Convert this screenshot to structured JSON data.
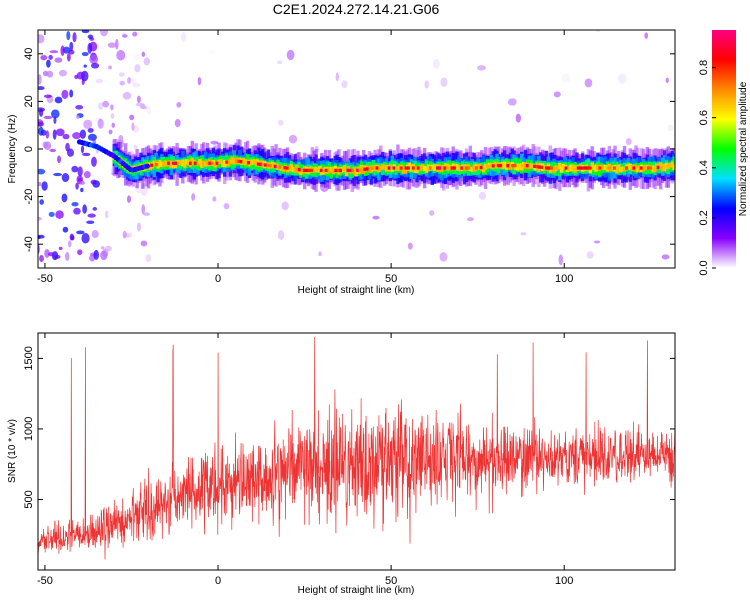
{
  "figure": {
    "title": "C2E1.2024.272.14.21.G06"
  },
  "chart_data": [
    {
      "type": "heatmap",
      "xlabel": "Height of straight line (km)",
      "ylabel": "Frequency (Hz)",
      "xlim": [
        -52,
        132
      ],
      "ylim": [
        -50,
        50
      ],
      "x_ticks": [
        -50,
        0,
        50,
        100
      ],
      "y_ticks": [
        -40,
        -20,
        0,
        20,
        40
      ],
      "ridge": {
        "x": [
          -40,
          -35,
          -30,
          -25,
          -20,
          -15,
          -10,
          -5,
          0,
          5,
          10,
          15,
          20,
          25,
          30,
          35,
          40,
          45,
          50,
          55,
          60,
          65,
          70,
          75,
          80,
          85,
          90,
          95,
          100,
          105,
          110,
          115,
          120,
          125,
          132
        ],
        "frequency_hz": [
          3,
          1,
          -3,
          -9,
          -7,
          -6,
          -6,
          -6,
          -6,
          -5,
          -6,
          -7,
          -8,
          -9,
          -9,
          -9,
          -9,
          -8,
          -8,
          -8,
          -8,
          -8,
          -8,
          -8,
          -7,
          -7,
          -7,
          -8,
          -8,
          -8,
          -8,
          -8,
          -8,
          -8,
          -7
        ]
      },
      "colorbar": {
        "label": "Normalized spectral amplitude",
        "ticks": [
          0.0,
          0.2,
          0.4,
          0.6,
          0.8
        ],
        "range": [
          0,
          0.95
        ],
        "colors": [
          "#ffffff",
          "#8800ff",
          "#0000ff",
          "#00e0ff",
          "#00ff00",
          "#ffff00",
          "#ff8800",
          "#ff0000",
          "#ff0080"
        ]
      }
    },
    {
      "type": "line",
      "xlabel": "Height of straight line (km)",
      "ylabel": "SNR (10 * v/v)",
      "xlim": [
        -52,
        132
      ],
      "ylim": [
        0,
        1680
      ],
      "x_ticks": [
        -50,
        0,
        50,
        100
      ],
      "y_ticks": [
        500,
        1000,
        1500
      ],
      "color": "#ee3333",
      "trend": {
        "x": [
          -52,
          -40,
          -30,
          -20,
          -10,
          0,
          10,
          20,
          30,
          40,
          50,
          60,
          70,
          80,
          90,
          100,
          110,
          120,
          132
        ],
        "snr_mean": [
          210,
          250,
          320,
          430,
          520,
          590,
          640,
          700,
          730,
          750,
          760,
          770,
          790,
          790,
          790,
          800,
          800,
          810,
          810
        ],
        "snr_spread": [
          90,
          110,
          160,
          200,
          230,
          260,
          290,
          350,
          390,
          400,
          380,
          360,
          300,
          250,
          220,
          200,
          190,
          180,
          180
        ]
      }
    }
  ]
}
